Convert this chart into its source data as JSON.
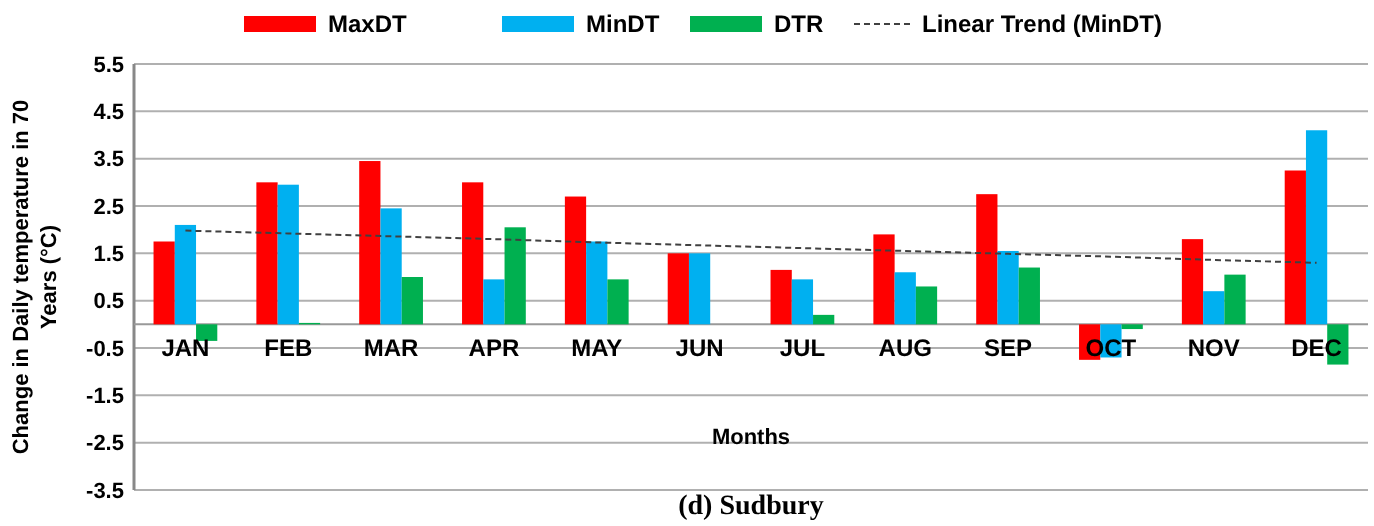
{
  "chart_data": {
    "type": "bar",
    "xlabel": "Months",
    "ylabel": "Change in Daily temperature in 70 Years (°C)",
    "annotations": [
      "(d) Sudbury"
    ],
    "categories": [
      "JAN",
      "FEB",
      "MAR",
      "APR",
      "MAY",
      "JUN",
      "JUL",
      "AUG",
      "SEP",
      "OCT",
      "NOV",
      "DEC"
    ],
    "series": [
      {
        "name": "MaxDT",
        "color": "#ff0000",
        "values": [
          1.75,
          3.0,
          3.45,
          3.0,
          2.7,
          1.5,
          1.15,
          1.9,
          2.75,
          -0.75,
          1.8,
          3.25
        ]
      },
      {
        "name": "MinDT",
        "color": "#00b0f0",
        "values": [
          2.1,
          2.95,
          2.45,
          0.95,
          1.75,
          1.5,
          0.95,
          1.1,
          1.55,
          -0.7,
          0.7,
          4.1
        ]
      },
      {
        "name": "DTR",
        "color": "#00b050",
        "values": [
          -0.35,
          0.03,
          1.0,
          2.05,
          0.95,
          0.0,
          0.2,
          0.8,
          1.2,
          -0.1,
          1.05,
          -0.85
        ]
      },
      {
        "name": "Linear Trend (MinDT)",
        "type": "line",
        "color": "#404040",
        "line_style": "dashed",
        "marker": "none",
        "values": [
          1.98,
          1.92,
          1.86,
          1.8,
          1.73,
          1.67,
          1.61,
          1.55,
          1.49,
          1.43,
          1.36,
          1.3
        ]
      }
    ],
    "ylim": [
      -3.5,
      5.5
    ],
    "yticks": [
      {
        "value": -3.5,
        "label": "-3.5"
      },
      {
        "value": -2.5,
        "label": "-2.5"
      },
      {
        "value": -1.5,
        "label": "-1.5"
      },
      {
        "value": -0.5,
        "label": "-0.5"
      },
      {
        "value": 0.5,
        "label": "0.5"
      },
      {
        "value": 1.5,
        "label": "1.5"
      },
      {
        "value": 2.5,
        "label": "2.5"
      },
      {
        "value": 3.5,
        "label": "3.5"
      },
      {
        "value": 4.5,
        "label": "4.5"
      },
      {
        "value": 5.5,
        "label": "5.5"
      }
    ],
    "grid": "y",
    "legend": "top"
  }
}
